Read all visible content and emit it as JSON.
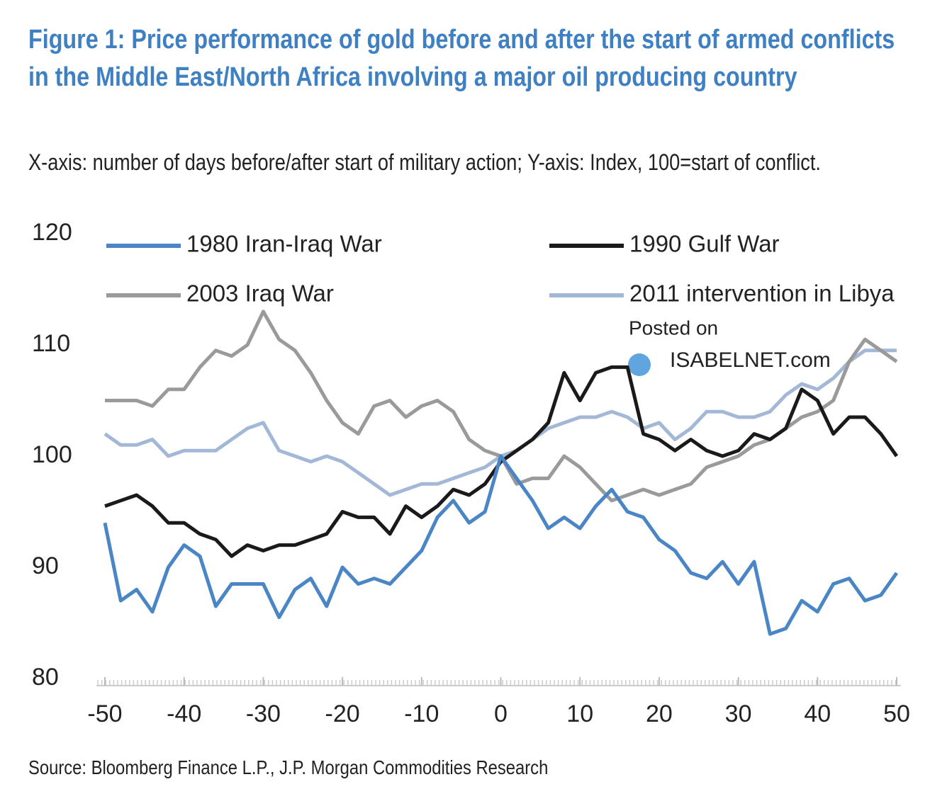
{
  "chart_data": {
    "type": "line",
    "title": "Figure 1: Price performance of gold before and after the start of armed conflicts in the Middle East/North Africa involving a major oil producing country",
    "subtitle": "X-axis: number of days before/after start of military action; Y-axis: Index, 100=start of conflict.",
    "source": "Source: Bloomberg Finance L.P., J.P. Morgan Commodities Research",
    "annotations": [
      "Posted on",
      "ISABELNET.com"
    ],
    "x": [
      -50,
      -48,
      -46,
      -44,
      -42,
      -40,
      -38,
      -36,
      -34,
      -32,
      -30,
      -28,
      -26,
      -24,
      -22,
      -20,
      -18,
      -16,
      -14,
      -12,
      -10,
      -8,
      -6,
      -4,
      -2,
      0,
      2,
      4,
      6,
      8,
      10,
      12,
      14,
      16,
      18,
      20,
      22,
      24,
      26,
      28,
      30,
      32,
      34,
      36,
      38,
      40,
      42,
      44,
      46,
      48,
      50
    ],
    "xlim": [
      -50,
      50
    ],
    "xticks": [
      -50,
      -40,
      -30,
      -20,
      -10,
      0,
      10,
      20,
      30,
      40,
      50
    ],
    "ylim": [
      80,
      120
    ],
    "yticks": [
      80,
      90,
      100,
      110,
      120
    ],
    "grid": false,
    "series": [
      {
        "name": "1980 Iran-Iraq War",
        "color": "#4a86c5",
        "values": [
          94,
          87,
          88,
          86,
          90,
          92,
          91,
          86.5,
          88.5,
          88.5,
          88.5,
          85.5,
          88,
          89,
          86.5,
          90,
          88.5,
          89,
          88.5,
          90,
          91.5,
          94.5,
          96,
          94,
          95,
          100,
          98,
          96,
          93.5,
          94.5,
          93.5,
          95.5,
          97,
          95,
          94.5,
          92.5,
          91.5,
          89.5,
          89,
          90.5,
          88.5,
          90.5,
          84,
          84.5,
          87,
          86,
          88.5,
          89,
          87,
          87.5,
          89.5
        ]
      },
      {
        "name": "1990 Gulf War",
        "color": "#1a1a1a",
        "values": [
          95.5,
          96,
          96.5,
          95.5,
          94,
          94,
          93,
          92.5,
          91,
          92,
          91.5,
          92,
          92,
          92.5,
          93,
          95,
          94.5,
          94.5,
          93,
          95.5,
          94.5,
          95.5,
          97,
          96.5,
          97.5,
          99.5,
          100.5,
          101.5,
          103,
          107.5,
          105,
          107.5,
          108,
          108,
          102,
          101.5,
          100.5,
          101.5,
          100.5,
          100,
          100.5,
          102,
          101.5,
          102.5,
          106,
          105,
          102,
          103.5,
          103.5,
          102,
          100
        ]
      },
      {
        "name": "2003 Iraq War",
        "color": "#9a9a9a",
        "values": [
          105,
          105,
          105,
          104.5,
          106,
          106,
          108,
          109.5,
          109,
          110,
          113,
          110.5,
          109.5,
          107.5,
          105,
          103,
          102,
          104.5,
          105,
          103.5,
          104.5,
          105,
          104,
          101.5,
          100.5,
          100,
          97.5,
          98,
          98,
          100,
          99,
          97.5,
          96,
          96.5,
          97,
          96.5,
          97,
          97.5,
          99,
          99.5,
          100,
          101,
          101.5,
          102.5,
          103.5,
          104,
          105,
          108.5,
          110.5,
          109.5,
          108.5
        ]
      },
      {
        "name": "2011 intervention in Libya",
        "color": "#a3b8d6",
        "values": [
          102,
          101,
          101,
          101.5,
          100,
          100.5,
          100.5,
          100.5,
          101.5,
          102.5,
          103,
          100.5,
          100,
          99.5,
          100,
          99.5,
          98.5,
          97.5,
          96.5,
          97,
          97.5,
          97.5,
          98,
          98.5,
          99,
          100,
          100.5,
          101.5,
          102.5,
          103,
          103.5,
          103.5,
          104,
          103.5,
          102.5,
          103,
          101.5,
          102.5,
          104,
          104,
          103.5,
          103.5,
          104,
          105.5,
          106.5,
          106,
          107,
          108.5,
          109.5,
          109.5,
          109.5
        ]
      }
    ]
  }
}
